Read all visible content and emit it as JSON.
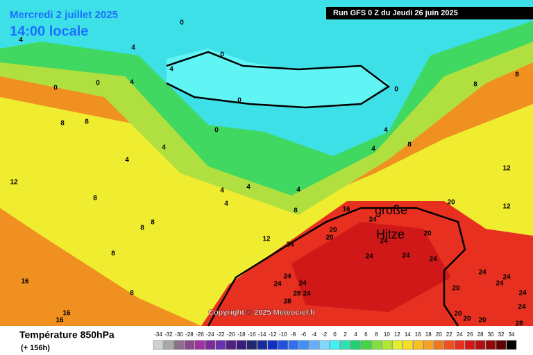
{
  "header": {
    "date": "Mercredi 2 juillet 2025",
    "time": "14:00 locale",
    "run": "Run GFS 0 Z du Jeudi 26 juin 2025"
  },
  "annotations": [
    "große",
    "Hitze"
  ],
  "copyright": "Copyright © 2025 Meteociel.fr",
  "footer": {
    "title": "Température 850hPa",
    "lead": "(+ 156h)"
  },
  "map_labels": [
    0,
    4,
    4,
    0,
    4,
    0,
    0,
    4,
    0,
    0,
    8,
    8,
    0,
    4,
    4,
    4,
    4,
    8,
    8,
    8,
    12,
    12,
    4,
    4,
    4,
    4,
    8,
    8,
    8,
    8,
    8,
    8,
    16,
    16,
    16,
    16,
    12,
    20,
    20,
    24,
    24,
    24,
    24,
    24,
    24,
    20,
    20,
    12,
    24,
    24,
    24,
    28,
    24,
    28,
    20,
    24,
    24,
    24,
    24,
    24,
    20,
    20,
    20,
    28
  ],
  "legend": {
    "values": [
      -34,
      -32,
      -30,
      -28,
      -26,
      -24,
      -22,
      -20,
      -18,
      -16,
      -14,
      -12,
      -10,
      -8,
      -6,
      -4,
      -2,
      0,
      2,
      4,
      6,
      8,
      10,
      12,
      14,
      16,
      18,
      20,
      22,
      24,
      26,
      28,
      30,
      32,
      34
    ],
    "colors": [
      "#d0d0d0",
      "#a8a8a8",
      "#8c708c",
      "#8a4a8a",
      "#a030a0",
      "#7a2a9a",
      "#6a30b0",
      "#502080",
      "#3a1a7a",
      "#202870",
      "#1a2a9a",
      "#1030c0",
      "#2050e0",
      "#3070f0",
      "#4090f8",
      "#60b0ff",
      "#80d8ff",
      "#40f0f0",
      "#30e0b0",
      "#20d070",
      "#40d840",
      "#80e040",
      "#b0e830",
      "#e0f030",
      "#f8e020",
      "#f8c020",
      "#f8a020",
      "#f07820",
      "#f05020",
      "#e83020",
      "#d01818",
      "#b01010",
      "#900808",
      "#600000",
      "#000000"
    ]
  }
}
